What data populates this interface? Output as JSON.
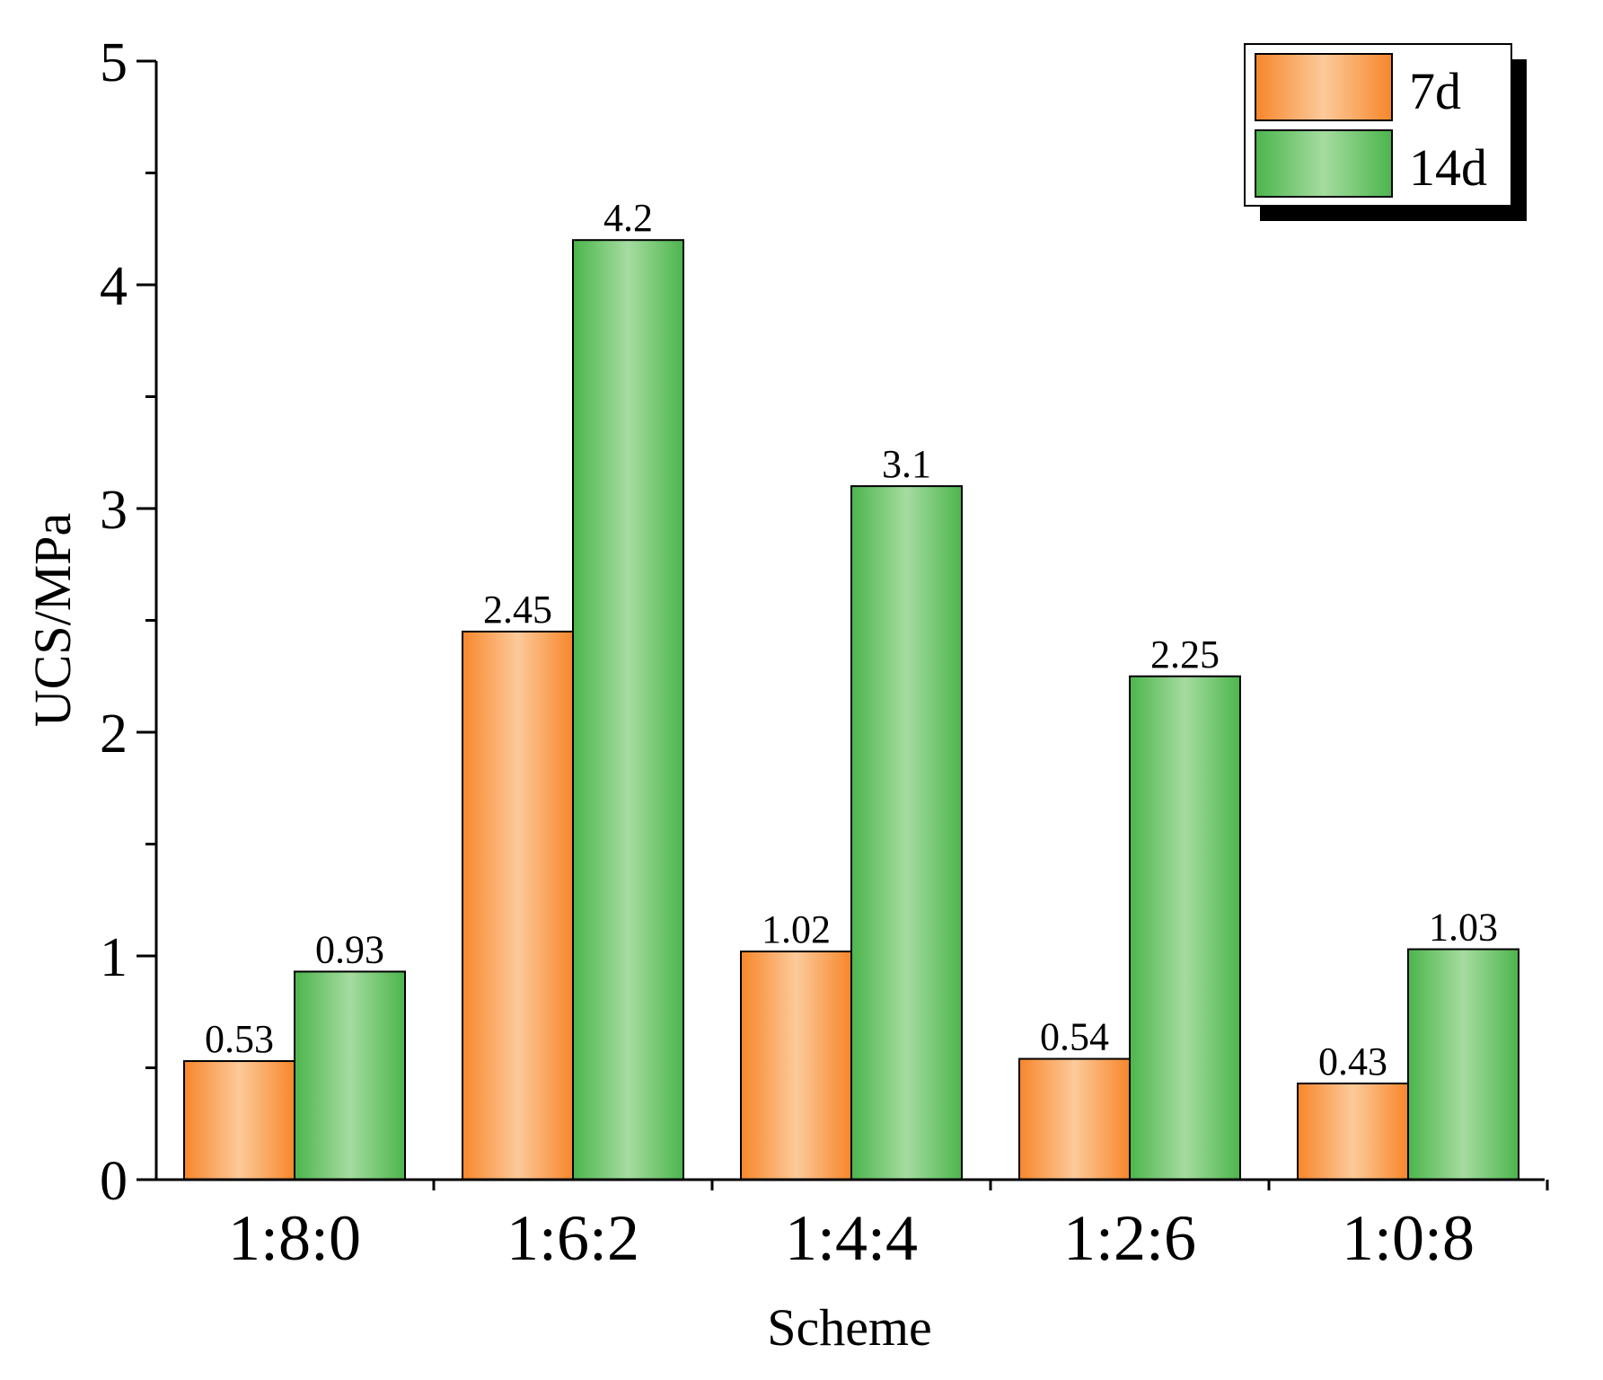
{
  "chart_data": {
    "type": "bar",
    "title": "",
    "xlabel": "Scheme",
    "ylabel": "UCS/MPa",
    "categories": [
      "1:8:0",
      "1:6:2",
      "1:4:4",
      "1:2:6",
      "1:0:8"
    ],
    "series": [
      {
        "name": "7d",
        "values": [
          0.53,
          2.45,
          1.02,
          0.54,
          0.43
        ],
        "color": "#F7862B",
        "highlight": "#FCCA9A"
      },
      {
        "name": "14d",
        "values": [
          0.93,
          4.2,
          3.1,
          2.25,
          1.03
        ],
        "color": "#4CB54C",
        "highlight": "#A5DCA0"
      }
    ],
    "value_labels": [
      [
        "0.53",
        "2.45",
        "1.02",
        "0.54",
        "0.43"
      ],
      [
        "0.93",
        "4.2",
        "3.1",
        "2.25",
        "1.03"
      ]
    ],
    "ylim": [
      0,
      5
    ],
    "yticks": [
      0,
      1,
      2,
      3,
      4,
      5
    ],
    "ytick_labels": [
      "0",
      "1",
      "2",
      "3",
      "4",
      "5"
    ],
    "grid": false,
    "legend_position": "top-right"
  }
}
